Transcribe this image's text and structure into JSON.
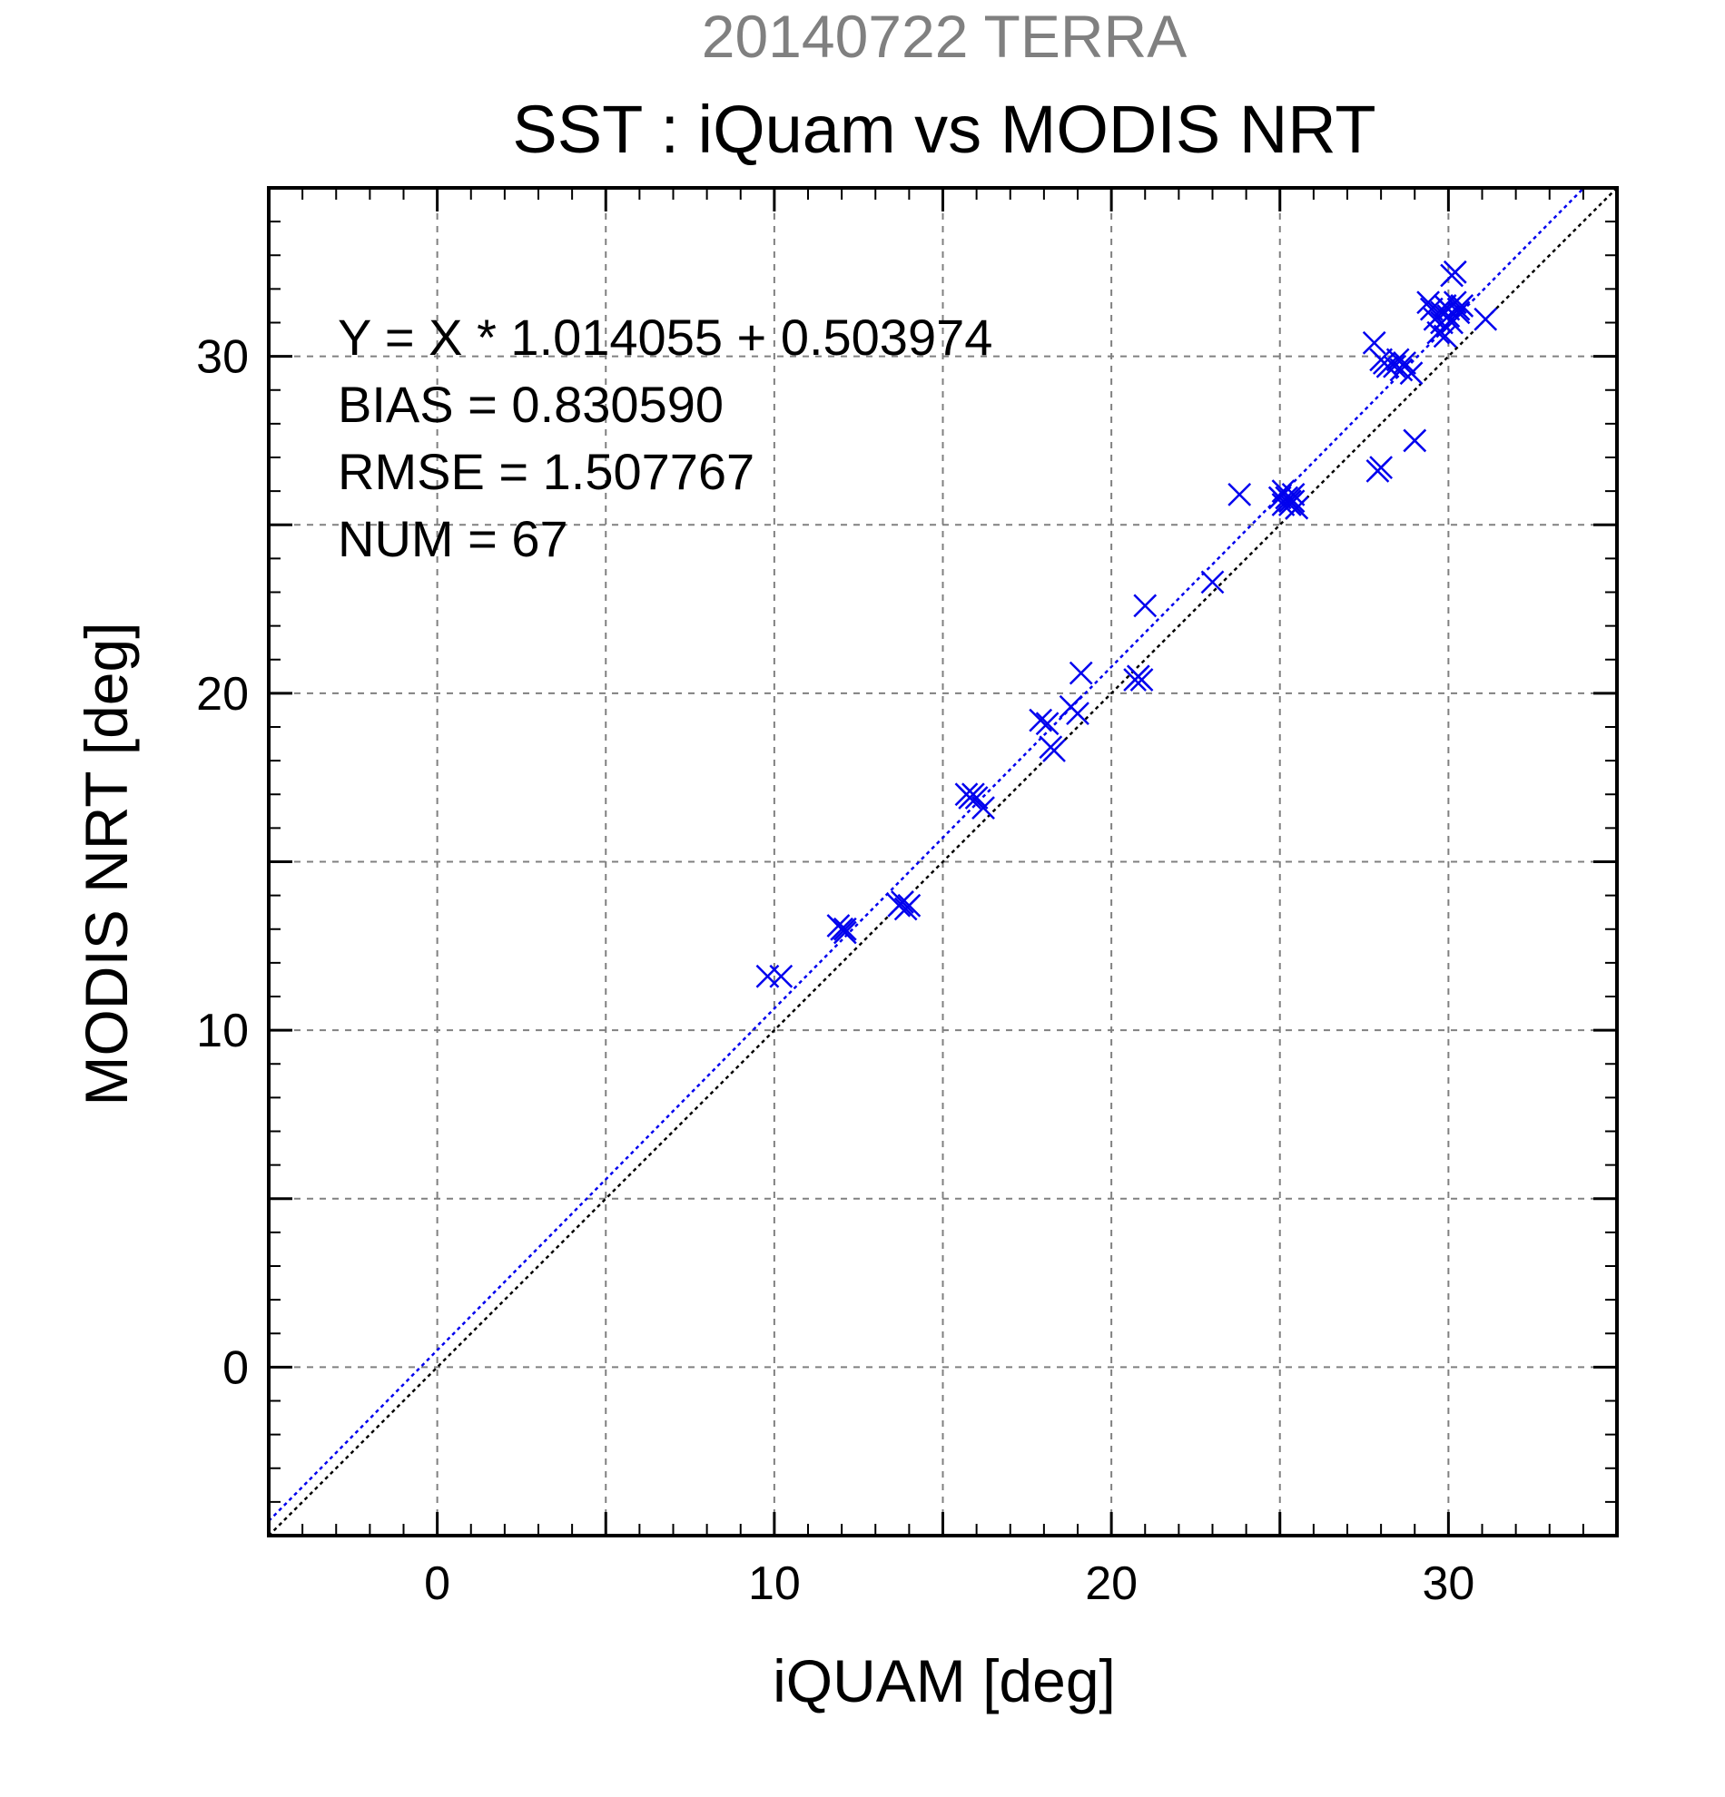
{
  "header": {
    "suptitle": "20140722 TERRA",
    "title": "SST : iQuam vs MODIS NRT"
  },
  "annotations": [
    "Y = X * 1.014055 + 0.503974",
    "BIAS = 0.830590",
    "RMSE = 1.507767",
    "NUM = 67"
  ],
  "colors": {
    "points": "#0000ee",
    "fit_line": "#0000ee",
    "identity_line": "#000000",
    "grid": "#808080",
    "suptitle": "#808080"
  },
  "chart_data": {
    "type": "scatter",
    "title": "SST : iQuam vs MODIS NRT",
    "subtitle": "20140722 TERRA",
    "xlabel": "iQUAM [deg]",
    "ylabel": "MODIS NRT [deg]",
    "xlim": [
      -5,
      35
    ],
    "ylim": [
      -5,
      35
    ],
    "xticks": [
      0,
      10,
      20,
      30
    ],
    "yticks": [
      0,
      10,
      20,
      30
    ],
    "grid": true,
    "marker": "x",
    "points": [
      [
        9.8,
        11.6
      ],
      [
        10.2,
        11.6
      ],
      [
        12.0,
        13.0
      ],
      [
        12.1,
        12.9
      ],
      [
        11.9,
        13.1
      ],
      [
        12.1,
        13.0
      ],
      [
        13.7,
        13.7
      ],
      [
        13.9,
        13.6
      ],
      [
        14.0,
        13.7
      ],
      [
        13.8,
        13.8
      ],
      [
        15.7,
        17.0
      ],
      [
        15.9,
        17.0
      ],
      [
        16.0,
        16.9
      ],
      [
        15.8,
        16.9
      ],
      [
        16.2,
        16.6
      ],
      [
        17.9,
        19.2
      ],
      [
        18.1,
        19.1
      ],
      [
        18.3,
        18.3
      ],
      [
        18.2,
        18.4
      ],
      [
        18.8,
        19.6
      ],
      [
        19.0,
        19.4
      ],
      [
        19.1,
        20.6
      ],
      [
        20.7,
        20.4
      ],
      [
        20.8,
        20.5
      ],
      [
        20.9,
        20.4
      ],
      [
        21.0,
        22.6
      ],
      [
        23.0,
        23.3
      ],
      [
        23.8,
        25.9
      ],
      [
        25.0,
        25.8
      ],
      [
        25.1,
        26.0
      ],
      [
        25.1,
        25.6
      ],
      [
        25.2,
        25.8
      ],
      [
        25.3,
        25.7
      ],
      [
        25.3,
        25.6
      ],
      [
        25.4,
        25.9
      ],
      [
        25.4,
        25.7
      ],
      [
        25.5,
        25.5
      ],
      [
        27.8,
        30.4
      ],
      [
        27.9,
        26.6
      ],
      [
        28.0,
        26.7
      ],
      [
        28.0,
        29.9
      ],
      [
        28.1,
        29.8
      ],
      [
        28.2,
        29.7
      ],
      [
        28.4,
        29.7
      ],
      [
        28.5,
        29.9
      ],
      [
        28.6,
        29.6
      ],
      [
        28.7,
        29.8
      ],
      [
        28.9,
        29.5
      ],
      [
        29.0,
        27.5
      ],
      [
        29.4,
        31.6
      ],
      [
        29.5,
        31.4
      ],
      [
        29.6,
        31.1
      ],
      [
        29.7,
        30.7
      ],
      [
        29.8,
        31.3
      ],
      [
        29.9,
        31.5
      ],
      [
        30.0,
        31.4
      ],
      [
        30.0,
        31.2
      ],
      [
        30.1,
        32.4
      ],
      [
        30.2,
        32.5
      ],
      [
        30.2,
        31.6
      ],
      [
        30.3,
        31.4
      ],
      [
        30.4,
        31.5
      ],
      [
        29.9,
        30.6
      ],
      [
        30.1,
        31.0
      ],
      [
        30.3,
        31.3
      ],
      [
        29.8,
        31.0
      ],
      [
        31.1,
        31.1
      ]
    ],
    "series": [
      {
        "type": "line",
        "slope": 1.014055,
        "intercept": 0.503974,
        "style": "dotted",
        "color": "#0000ee"
      },
      {
        "type": "line",
        "slope": 1.0,
        "intercept": 0.0,
        "style": "dotted",
        "color": "#000000"
      }
    ]
  }
}
